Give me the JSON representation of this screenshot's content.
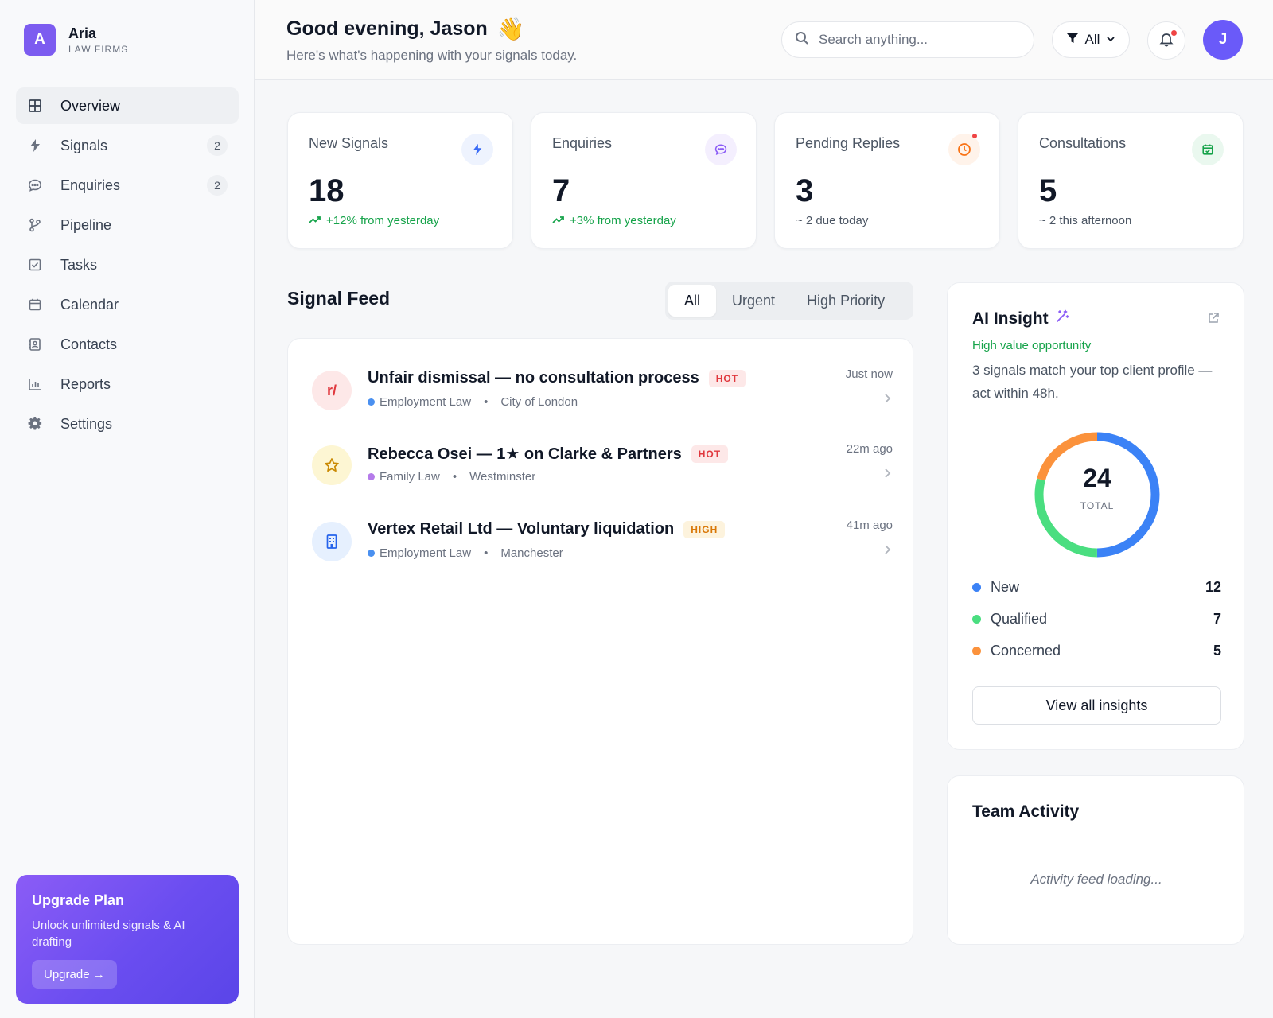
{
  "brand": {
    "letter": "A",
    "name": "Aria",
    "sub": "LAW FIRMS"
  },
  "nav": [
    {
      "label": "Overview",
      "icon": "grid-icon",
      "active": true
    },
    {
      "label": "Signals",
      "icon": "lightning-icon",
      "badge": "2"
    },
    {
      "label": "Enquiries",
      "icon": "chat-icon",
      "badge": "2"
    },
    {
      "label": "Pipeline",
      "icon": "branch-icon"
    },
    {
      "label": "Tasks",
      "icon": "checkbox-icon"
    },
    {
      "label": "Calendar",
      "icon": "calendar-icon"
    },
    {
      "label": "Contacts",
      "icon": "contact-book-icon"
    },
    {
      "label": "Reports",
      "icon": "bar-chart-icon"
    },
    {
      "label": "Settings",
      "icon": "gear-icon"
    }
  ],
  "upgrade": {
    "title": "Upgrade Plan",
    "text": "Unlock unlimited signals & AI drafting",
    "button": "Upgrade →"
  },
  "header": {
    "greeting": "Good evening, Jason",
    "wave": "👋",
    "subtitle": "Here's what's happening with your signals today.",
    "search_placeholder": "Search anything...",
    "filter_label": "All",
    "avatar_letter": "J"
  },
  "stats": [
    {
      "label": "New Signals",
      "value": "18",
      "delta": "+12% from yesterday",
      "icon": "lightning-icon",
      "color": "#3b6cf6"
    },
    {
      "label": "Enquiries",
      "value": "7",
      "delta": "+3% from yesterday",
      "icon": "chat-icon",
      "color": "#8b5cf6"
    },
    {
      "label": "Pending Replies",
      "value": "3",
      "delta": "~ 2 due today",
      "icon": "clock-icon",
      "color": "#f97316"
    },
    {
      "label": "Consultations",
      "value": "5",
      "delta": "~ 2 this afternoon",
      "icon": "calendar-check-icon",
      "color": "#16a34a"
    }
  ],
  "feed": {
    "title": "Signal Feed",
    "tabs": [
      "All",
      "Urgent",
      "High Priority"
    ],
    "items": [
      {
        "icon_text": "r/",
        "icon": "reddit-icon",
        "title": "Unfair dismissal — no consultation process",
        "tag": "HOT",
        "area": "Employment Law",
        "area_color": "#4a90f0",
        "location": "City of London",
        "time": "Just now"
      },
      {
        "icon_text": "",
        "icon": "star-icon",
        "title": "Rebecca Osei — 1★ on Clarke & Partners",
        "tag": "HOT",
        "area": "Family Law",
        "area_color": "#b57bea",
        "location": "Westminster",
        "time": "22m ago"
      },
      {
        "icon_text": "",
        "icon": "building-icon",
        "title": "Vertex Retail Ltd — Voluntary liquidation",
        "tag": "HIGH",
        "area": "Employment Law",
        "area_color": "#4a90f0",
        "location": "Manchester",
        "time": "41m ago"
      }
    ]
  },
  "insight": {
    "title": "AI Insight",
    "kicker": "High value opportunity",
    "text": "3 signals match your top client profile — act within 48h.",
    "total": "24",
    "total_label": "TOTAL",
    "legend": [
      {
        "name": "New",
        "value": "12",
        "color": "#3b82f6"
      },
      {
        "name": "Qualified",
        "value": "7",
        "color": "#4ade80"
      },
      {
        "name": "Concerned",
        "value": "5",
        "color": "#fb923c"
      }
    ],
    "button": "View all insights"
  },
  "team": {
    "title": "Team Activity",
    "loading": "Activity feed loading..."
  }
}
